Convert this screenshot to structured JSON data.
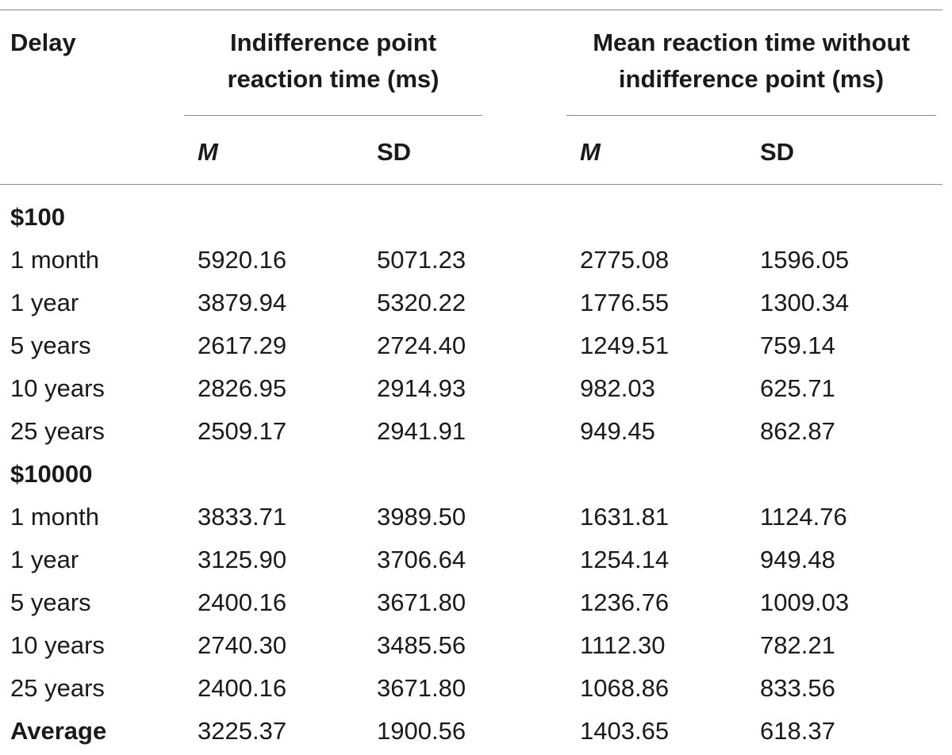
{
  "table": {
    "header": {
      "delay": "Delay",
      "group1_line1": "Indifference point",
      "group1_line2": "reaction time (ms)",
      "group2_line1": "Mean reaction time without",
      "group2_line2": "indifference point (ms)",
      "sub_m1": "M",
      "sub_sd1": "SD",
      "sub_m2": "M",
      "sub_sd2": "SD"
    },
    "rows": [
      {
        "label": "$100",
        "type": "section",
        "values": [
          "",
          "",
          "",
          ""
        ]
      },
      {
        "label": "1 month",
        "type": "data",
        "values": [
          "5920.16",
          "5071.23",
          "2775.08",
          "1596.05"
        ]
      },
      {
        "label": "1 year",
        "type": "data",
        "values": [
          "3879.94",
          "5320.22",
          "1776.55",
          "1300.34"
        ]
      },
      {
        "label": "5 years",
        "type": "data",
        "values": [
          "2617.29",
          "2724.40",
          "1249.51",
          "759.14"
        ]
      },
      {
        "label": "10 years",
        "type": "data",
        "values": [
          "2826.95",
          "2914.93",
          "982.03",
          "625.71"
        ]
      },
      {
        "label": "25 years",
        "type": "data",
        "values": [
          "2509.17",
          "2941.91",
          "949.45",
          "862.87"
        ]
      },
      {
        "label": "$10000",
        "type": "section",
        "values": [
          "",
          "",
          "",
          ""
        ]
      },
      {
        "label": "1 month",
        "type": "data",
        "values": [
          "3833.71",
          "3989.50",
          "1631.81",
          "1124.76"
        ]
      },
      {
        "label": "1 year",
        "type": "data",
        "values": [
          "3125.90",
          "3706.64",
          "1254.14",
          "949.48"
        ]
      },
      {
        "label": "5 years",
        "type": "data",
        "values": [
          "2400.16",
          "3671.80",
          "1236.76",
          "1009.03"
        ]
      },
      {
        "label": "10 years",
        "type": "data",
        "values": [
          "2740.30",
          "3485.56",
          "1112.30",
          "782.21"
        ]
      },
      {
        "label": "25 years",
        "type": "data",
        "values": [
          "2400.16",
          "3671.80",
          "1068.86",
          "833.56"
        ]
      },
      {
        "label": "Average",
        "type": "total",
        "values": [
          "3225.37",
          "1900.56",
          "1403.65",
          "618.37"
        ]
      }
    ]
  }
}
